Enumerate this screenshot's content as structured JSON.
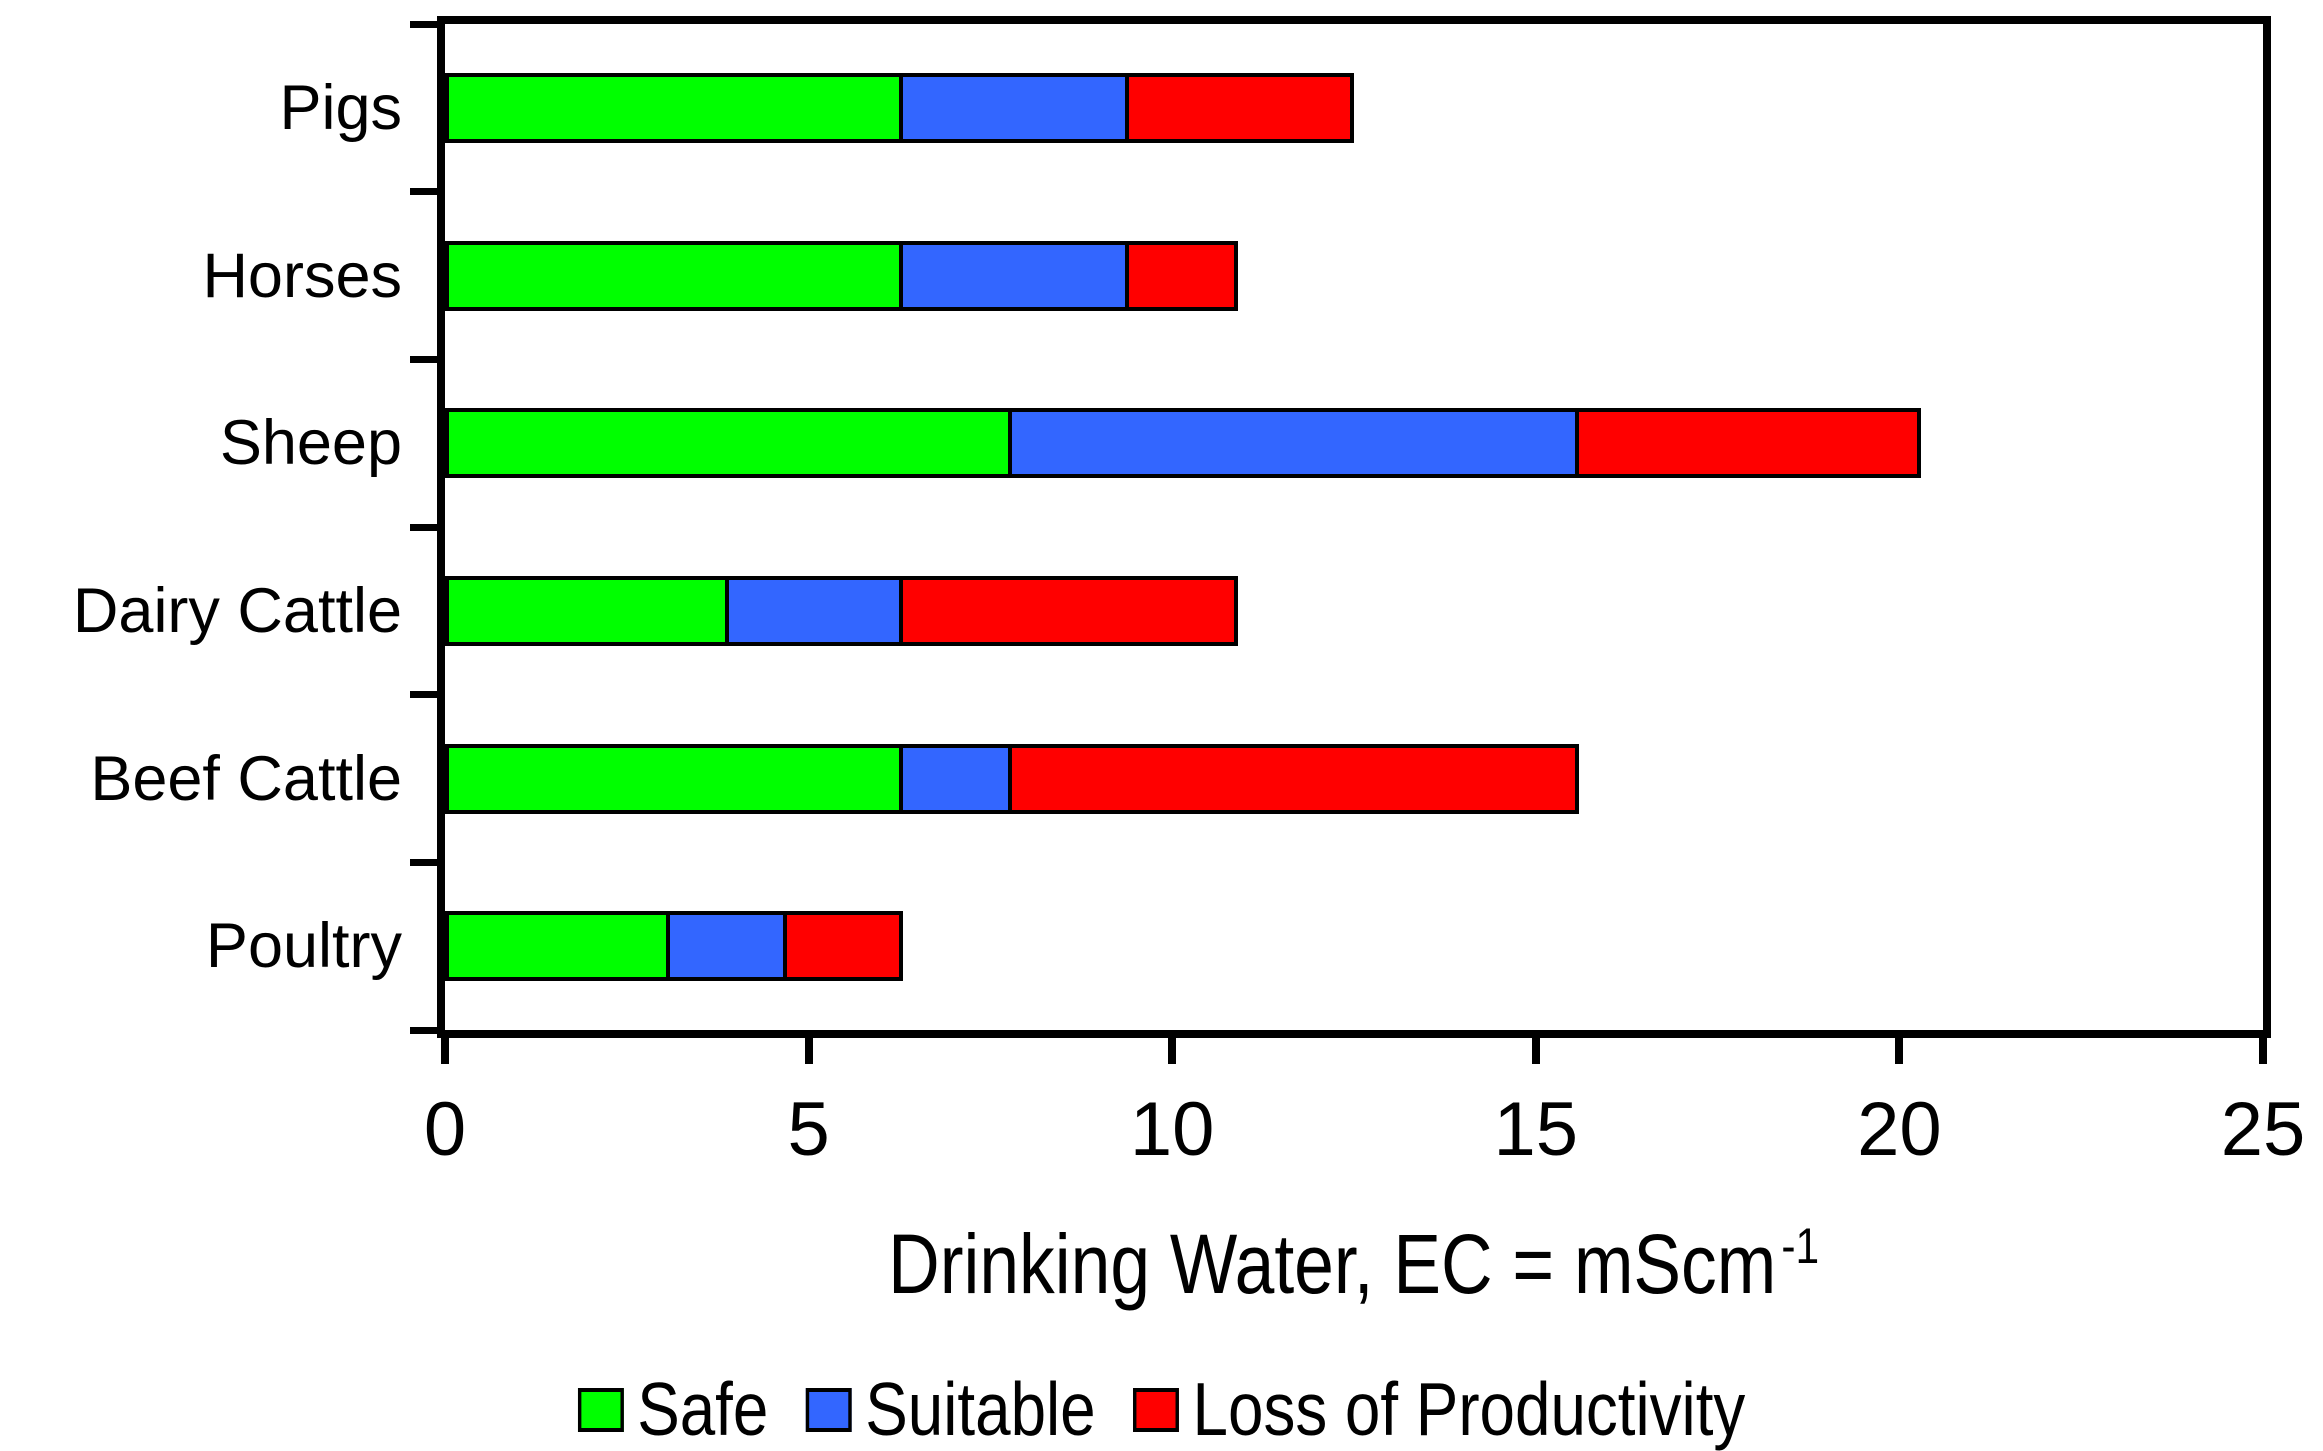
{
  "chart_data": {
    "type": "bar",
    "orientation": "horizontal",
    "stacked": true,
    "categories": [
      "Pigs",
      "Horses",
      "Sheep",
      "Dairy Cattle",
      "Beef Cattle",
      "Poultry"
    ],
    "series": [
      {
        "name": "Safe",
        "color": "#00FF00",
        "values": [
          6.3,
          6.3,
          7.8,
          3.9,
          6.3,
          3.1
        ]
      },
      {
        "name": "Suitable",
        "color": "#3366FF",
        "values": [
          3.1,
          3.1,
          7.8,
          2.4,
          1.5,
          1.6
        ]
      },
      {
        "name": "Loss of Productivity",
        "color": "#FF0000",
        "values": [
          3.1,
          1.5,
          4.7,
          4.6,
          7.8,
          1.6
        ]
      }
    ],
    "cumulative_boundaries": {
      "Pigs": [
        6.3,
        9.4,
        12.5
      ],
      "Horses": [
        6.3,
        9.4,
        10.9
      ],
      "Sheep": [
        7.8,
        15.6,
        20.3
      ],
      "Dairy Cattle": [
        3.9,
        6.3,
        10.9
      ],
      "Beef Cattle": [
        6.3,
        7.8,
        15.6
      ],
      "Poultry": [
        3.1,
        4.7,
        6.3
      ]
    },
    "xlabel_main": "Drinking Water, EC = mScm",
    "xlabel_superscript": "-1",
    "xlim": [
      0,
      25
    ],
    "xticks": [
      0,
      5,
      10,
      15,
      20,
      25
    ],
    "grid": false,
    "legend_position": "bottom",
    "frame_color": "#000000",
    "background_color": "#FFFFFF"
  }
}
